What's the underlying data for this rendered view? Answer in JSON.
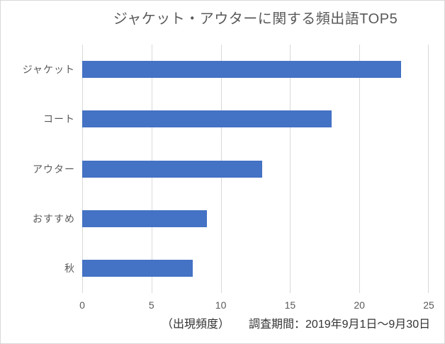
{
  "chart": {
    "footer": {
      "axis_note": "（出現頻度）",
      "survey_period": "調査期間：2019年9月1日～9月30日"
    }
  },
  "chart_data": {
    "type": "bar",
    "orientation": "horizontal",
    "title": "ジャケット・アウターに関する頻出語TOP5",
    "categories": [
      "ジャケット",
      "コート",
      "アウター",
      "おすすめ",
      "秋"
    ],
    "values": [
      23,
      18,
      13,
      9,
      8
    ],
    "xlabel": "出現頻度",
    "ylabel": "",
    "xlim": [
      0,
      25
    ],
    "xticks": [
      0,
      5,
      10,
      15,
      20,
      25
    ],
    "grid": "vertical-major",
    "legend": false,
    "annotations": [
      "（出現頻度）",
      "調査期間：2019年9月1日～9月30日"
    ]
  },
  "colors": {
    "bar": "#4472C4",
    "gridline": "#D9D9D9",
    "axis_text": "#595959",
    "title_text": "#595959",
    "caption_text": "#333333",
    "frame_border": "#D9D9D9",
    "background": "#FFFFFF"
  }
}
